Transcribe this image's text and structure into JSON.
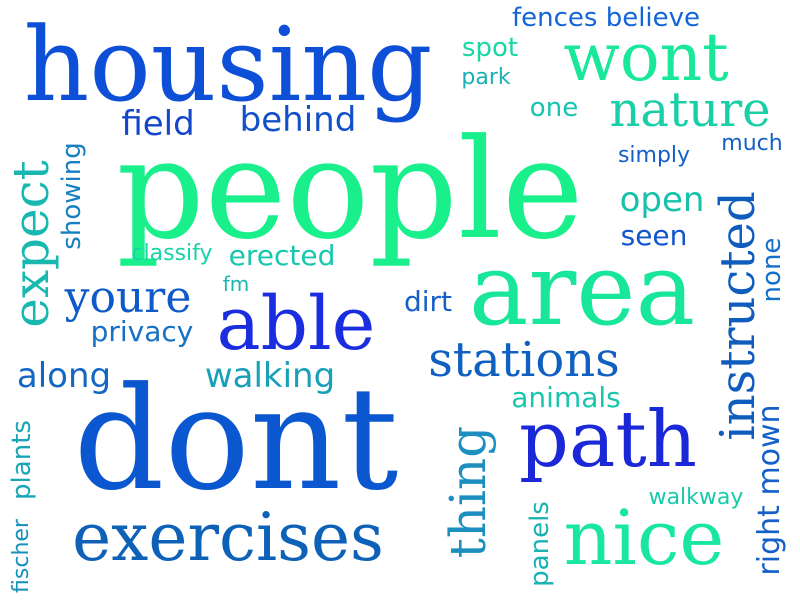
{
  "words": [
    {
      "id": "housing",
      "text": "housing",
      "color": "#0d4fd6"
    },
    {
      "id": "people",
      "text": "people",
      "color": "#19f08c"
    },
    {
      "id": "dont",
      "text": "dont",
      "color": "#0b57d0"
    },
    {
      "id": "area",
      "text": "area",
      "color": "#18e69a"
    },
    {
      "id": "able",
      "text": "able",
      "color": "#1a2ee0"
    },
    {
      "id": "path",
      "text": "path",
      "color": "#1a28d8"
    },
    {
      "id": "exercises",
      "text": "exercises",
      "color": "#0d62b8"
    },
    {
      "id": "nice",
      "text": "nice",
      "color": "#19e6a0"
    },
    {
      "id": "wont",
      "text": "wont",
      "color": "#19e89a"
    },
    {
      "id": "nature",
      "text": "nature",
      "color": "#18cfa8"
    },
    {
      "id": "stations",
      "text": "stations",
      "color": "#1060c0"
    },
    {
      "id": "youre",
      "text": "youre",
      "color": "#0d5ac8"
    },
    {
      "id": "expect",
      "text": "expect",
      "color": "#18b8b0"
    },
    {
      "id": "instructed",
      "text": "instructed",
      "color": "#0e5cbc"
    },
    {
      "id": "thing",
      "text": "thing",
      "color": "#1d8ec0"
    },
    {
      "id": "fences-believe",
      "text": "fences believe",
      "color": "#1466d6"
    },
    {
      "id": "spot",
      "text": "spot",
      "color": "#19d6a4"
    },
    {
      "id": "park",
      "text": "park",
      "color": "#18b0b4"
    },
    {
      "id": "one",
      "text": "one",
      "color": "#17c4ae"
    },
    {
      "id": "field",
      "text": "field",
      "color": "#1446cc"
    },
    {
      "id": "behind",
      "text": "behind",
      "color": "#1150c8"
    },
    {
      "id": "much",
      "text": "much",
      "color": "#1460c4"
    },
    {
      "id": "simply",
      "text": "simply",
      "color": "#1560c8"
    },
    {
      "id": "open",
      "text": "open",
      "color": "#18c2aa"
    },
    {
      "id": "seen",
      "text": "seen",
      "color": "#1155cc"
    },
    {
      "id": "showing",
      "text": "showing",
      "color": "#1680c0"
    },
    {
      "id": "classify",
      "text": "classify",
      "color": "#18d2a8"
    },
    {
      "id": "erected",
      "text": "erected",
      "color": "#18c8ac"
    },
    {
      "id": "fm",
      "text": "fm",
      "color": "#18b6b0"
    },
    {
      "id": "privacy",
      "text": "privacy",
      "color": "#1670c4"
    },
    {
      "id": "dirt",
      "text": "dirt",
      "color": "#1660c8"
    },
    {
      "id": "none",
      "text": "none",
      "color": "#1570c8"
    },
    {
      "id": "along",
      "text": "along",
      "color": "#1268c4"
    },
    {
      "id": "walking",
      "text": "walking",
      "color": "#18a0b8"
    },
    {
      "id": "animals",
      "text": "animals",
      "color": "#18c6ac"
    },
    {
      "id": "right-mown",
      "text": "right mown",
      "color": "#1460c8"
    },
    {
      "id": "plants",
      "text": "plants",
      "color": "#18a6b4"
    },
    {
      "id": "fischer",
      "text": "fischer",
      "color": "#1690bc"
    },
    {
      "id": "walkway",
      "text": "walkway",
      "color": "#18caaa"
    },
    {
      "id": "panels",
      "text": "panels",
      "color": "#18b2b2"
    }
  ]
}
